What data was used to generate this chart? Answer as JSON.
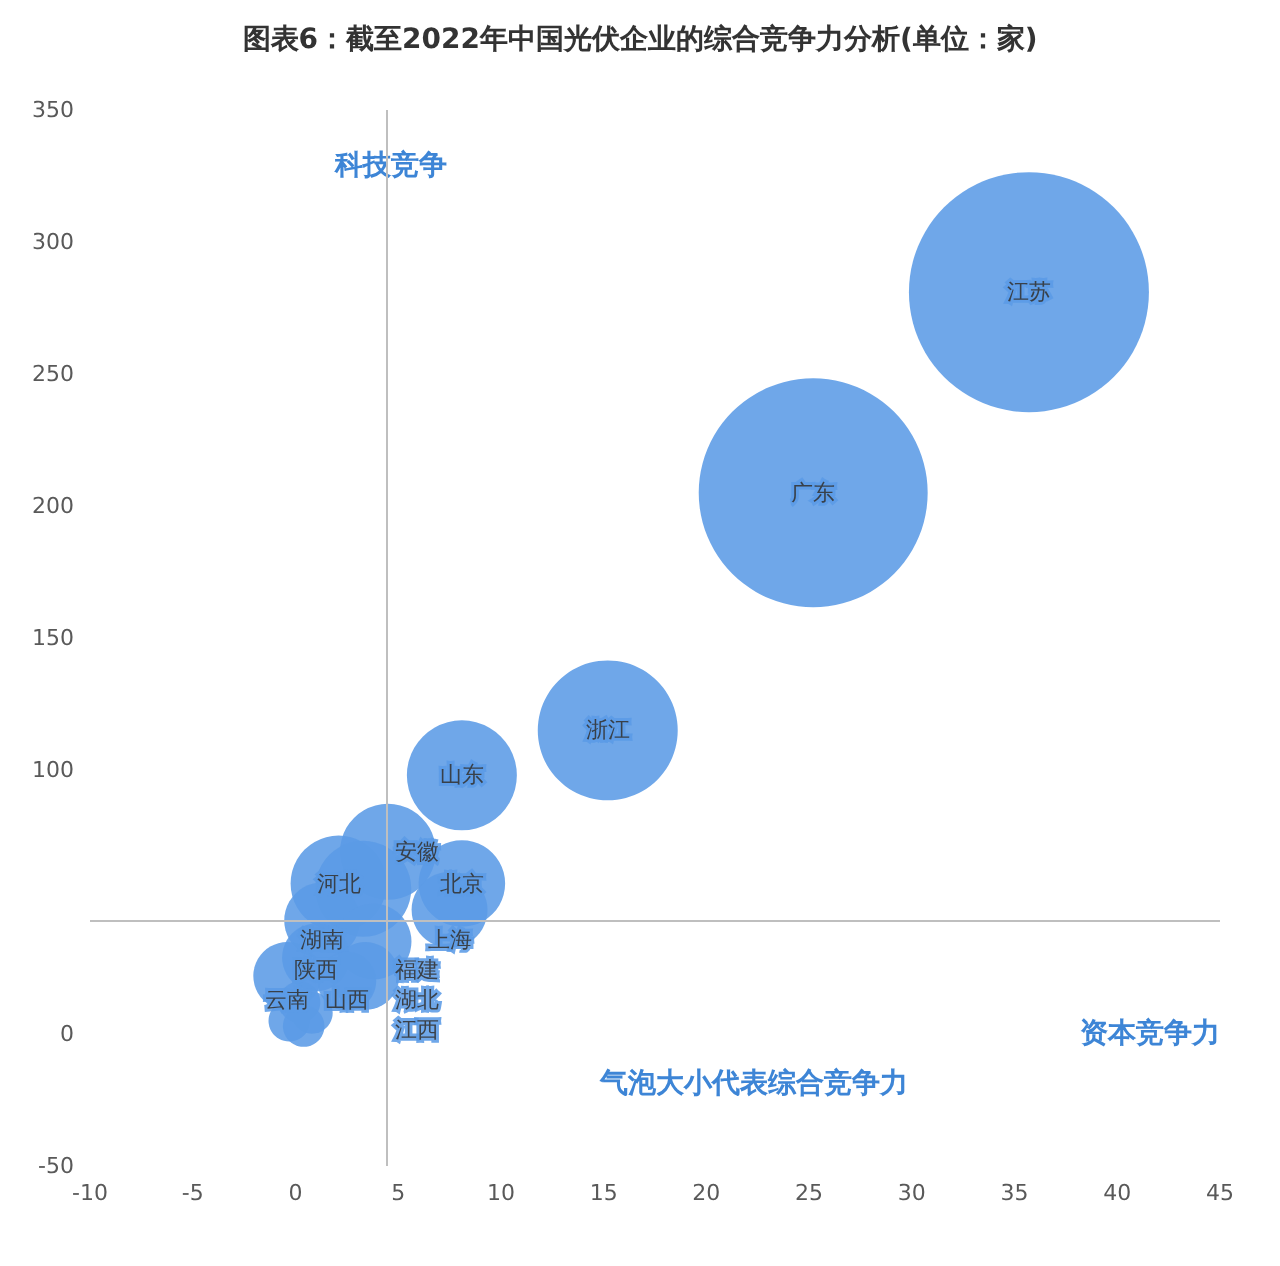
{
  "chart_data": {
    "type": "bubble",
    "title": "图表6：截至2022年中国光伏企业的综合竞争力分析(单位：家)",
    "xlabel": "资本竞争力",
    "ylabel": "科技竞争",
    "annotations": [
      "气泡大小代表综合竞争力"
    ],
    "x": [
      35.7,
      25.2,
      15.2,
      8.1,
      4.5,
      8.1,
      7.5,
      2.1,
      3.3,
      1.3,
      3.8,
      1.0,
      3.4,
      2.5,
      -0.4,
      0.2,
      0.8,
      -0.3,
      0.4
    ],
    "values": [
      281,
      205,
      115,
      98,
      69,
      57,
      47,
      57,
      55,
      43,
      35,
      29,
      22,
      20,
      22,
      12,
      8,
      5,
      3
    ],
    "sizes": [
      1,
      0.91,
      0.34,
      0.21,
      0.16,
      0.13,
      0.1,
      0.16,
      0.16,
      0.1,
      0.1,
      0.08,
      0.08,
      0.06,
      0.08,
      0.03,
      0.03,
      0.03,
      0.03
    ],
    "value_labels": [
      "江苏",
      "广东",
      "浙江",
      "山东",
      "安徽",
      "北京",
      "上海",
      "河北",
      "福建",
      "湖南",
      "湖北",
      "陕西",
      "江西",
      "山西",
      "云南",
      null,
      null,
      null,
      null
    ],
    "color": "#5b9be6",
    "xlim": [
      -10,
      45
    ],
    "xticks": [
      -10,
      -5,
      0,
      5,
      10,
      15,
      20,
      25,
      30,
      35,
      40,
      45
    ],
    "ylim": [
      -50,
      350
    ],
    "yticks": [
      -50,
      0,
      100,
      150,
      200,
      250,
      300,
      350
    ],
    "ref_lines": [
      {
        "axis": "x",
        "value": 4.4,
        "label": null,
        "color": "#bfbfbf"
      },
      {
        "axis": "y",
        "value": 43,
        "label": null,
        "color": "#bfbfbf"
      }
    ],
    "grid": false
  }
}
